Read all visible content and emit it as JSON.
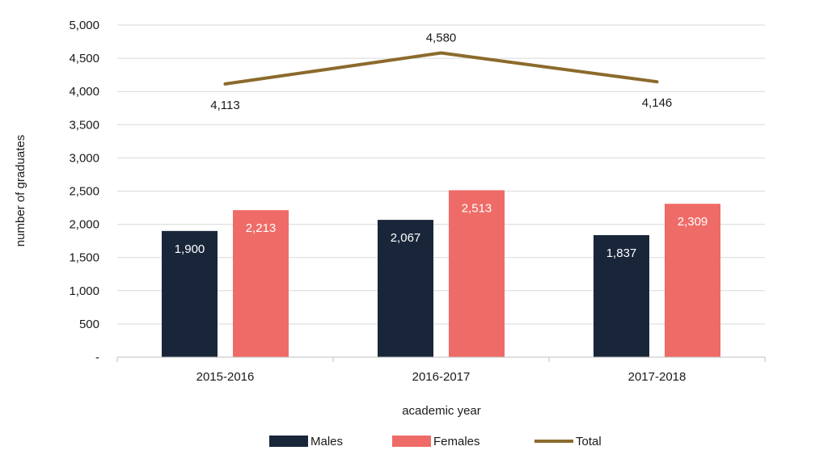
{
  "chart_data": {
    "type": "bar",
    "categories": [
      "2015-2016",
      "2016-2017",
      "2017-2018"
    ],
    "series": [
      {
        "name": "Males",
        "kind": "bar",
        "color": "#19263a",
        "values": [
          1900,
          2067,
          1837
        ],
        "labels": [
          "1,900",
          "2,067",
          "1,837"
        ]
      },
      {
        "name": "Females",
        "kind": "bar",
        "color": "#ef6b67",
        "values": [
          2213,
          2513,
          2309
        ],
        "labels": [
          "2,213",
          "2,513",
          "2,309"
        ]
      },
      {
        "name": "Total",
        "kind": "line",
        "color": "#8b6a2c",
        "values": [
          4113,
          4580,
          4146
        ],
        "labels": [
          "4,113",
          "4,580",
          "4,146"
        ]
      }
    ],
    "xlabel": "academic year",
    "ylabel": "number of graduates",
    "ylim": [
      0,
      5000
    ],
    "yticks": [
      0,
      500,
      1000,
      1500,
      2000,
      2500,
      3000,
      3500,
      4000,
      4500,
      5000
    ],
    "ytick_labels": [
      "-",
      "500",
      "1,000",
      "1,500",
      "2,000",
      "2,500",
      "3,000",
      "3,500",
      "4,000",
      "4,500",
      "5,000"
    ],
    "grid": true,
    "legend_position": "bottom"
  }
}
